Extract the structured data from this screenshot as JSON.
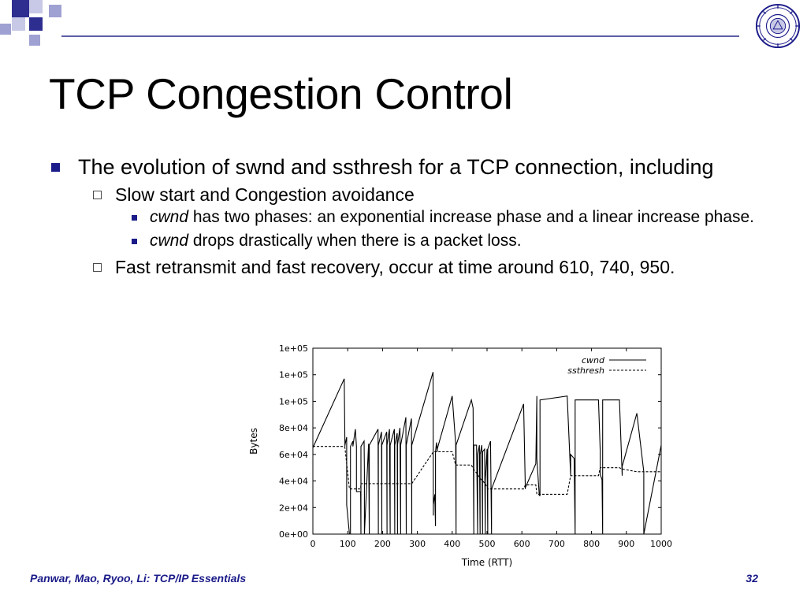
{
  "slide": {
    "title": "TCP Congestion Control",
    "accent_color": "#1b1b8a",
    "logo_icon": "university-seal-icon"
  },
  "bullets": {
    "b1": "The evolution of swnd and ssthresh for a TCP connection, including",
    "b1_1": "Slow start and Congestion avoidance",
    "b1_1_1_em": "cwnd",
    "b1_1_1_rest": " has two phases: an exponential increase phase and a linear increase phase.",
    "b1_1_2_em": "cwnd",
    "b1_1_2_rest": " drops drastically when there is a packet loss.",
    "b1_2": "Fast retransmit and fast recovery, occur at time around 610, 740, 950."
  },
  "chart_data": {
    "type": "line",
    "xlabel": "Time (RTT)",
    "ylabel": "Bytes",
    "xlim": [
      0,
      1000
    ],
    "ylim": [
      0,
      140000
    ],
    "x_ticks": [
      "0",
      "100",
      "200",
      "300",
      "400",
      "500",
      "600",
      "700",
      "800",
      "900",
      "1000"
    ],
    "y_ticks": [
      "0e+00",
      "2e+04",
      "4e+04",
      "6e+04",
      "8e+04",
      "1e+05",
      "1e+05",
      "1e+05"
    ],
    "legend_position": "top-right",
    "series": [
      {
        "name": "cwnd",
        "style": "solid",
        "x": [
          0,
          90,
          92,
          92,
          97,
          97,
          105,
          108,
          108,
          115,
          115,
          122,
          125,
          125,
          137,
          138,
          138,
          147,
          148,
          148,
          160,
          162,
          162,
          187,
          188,
          188,
          197,
          198,
          198,
          212,
          213,
          213,
          220,
          222,
          222,
          234,
          235,
          235,
          242,
          243,
          243,
          250,
          252,
          252,
          267,
          268,
          268,
          283,
          284,
          284,
          345,
          346,
          346,
          350,
          352,
          352,
          355,
          357,
          357,
          400,
          410,
          411,
          411,
          455,
          460,
          462,
          462,
          470,
          473,
          473,
          478,
          480,
          480,
          485,
          487,
          487,
          493,
          495,
          495,
          500,
          502,
          502,
          510,
          513,
          513,
          605,
          610,
          610,
          640,
          643,
          643,
          650,
          652,
          652,
          730,
          740,
          740,
          750,
          753,
          753,
          820,
          825,
          825,
          830,
          832,
          832,
          880,
          888,
          888,
          930,
          950,
          950,
          1000
        ],
        "y": [
          65000,
          117000,
          66000,
          67000,
          73000,
          22000,
          0,
          0,
          66000,
          70000,
          66000,
          79000,
          66000,
          32000,
          32000,
          0,
          66000,
          70000,
          47000,
          0,
          68000,
          0,
          67000,
          79000,
          0,
          67000,
          77000,
          0,
          67000,
          77000,
          0,
          67000,
          79000,
          0,
          67000,
          79000,
          0,
          67000,
          76000,
          0,
          67000,
          80000,
          0,
          67000,
          88000,
          0,
          67000,
          87000,
          0,
          67000,
          122000,
          14000,
          22000,
          30000,
          6000,
          62000,
          69000,
          62000,
          64000,
          104000,
          68000,
          0,
          67000,
          101000,
          95000,
          0,
          67000,
          67000,
          0,
          60000,
          67000,
          0,
          60000,
          67000,
          0,
          62000,
          64000,
          0,
          40000,
          64000,
          0,
          64000,
          70000,
          0,
          34000,
          98000,
          34000,
          35000,
          53000,
          104000,
          57000,
          29000,
          29000,
          101000,
          104000,
          44000,
          60000,
          57000,
          0,
          101000,
          101000,
          63000,
          45000,
          41000,
          0,
          101000,
          101000,
          44000,
          51000,
          91000,
          47000,
          0,
          67000
        ]
      },
      {
        "name": "ssthresh",
        "style": "dashed",
        "x": [
          0,
          90,
          92,
          105,
          108,
          125,
          137,
          138,
          148,
          187,
          283,
          284,
          346,
          400,
          410,
          455,
          461,
          470,
          480,
          487,
          495,
          502,
          510,
          513,
          605,
          610,
          640,
          643,
          730,
          740,
          750,
          820,
          825,
          830,
          880,
          888,
          930,
          950,
          1000
        ],
        "y": [
          66000,
          66000,
          65000,
          34000,
          34000,
          34000,
          34000,
          38000,
          38000,
          38000,
          38000,
          38000,
          62000,
          62000,
          52000,
          52000,
          49000,
          46000,
          42000,
          40000,
          38000,
          34000,
          34000,
          34000,
          34000,
          37000,
          37000,
          30000,
          30000,
          44000,
          44000,
          44000,
          50000,
          50000,
          50000,
          49000,
          47000,
          47000,
          47000
        ]
      }
    ]
  },
  "footer": {
    "authors": "Panwar, Mao, Ryoo, Li: TCP/IP Essentials",
    "page_number": "32"
  }
}
